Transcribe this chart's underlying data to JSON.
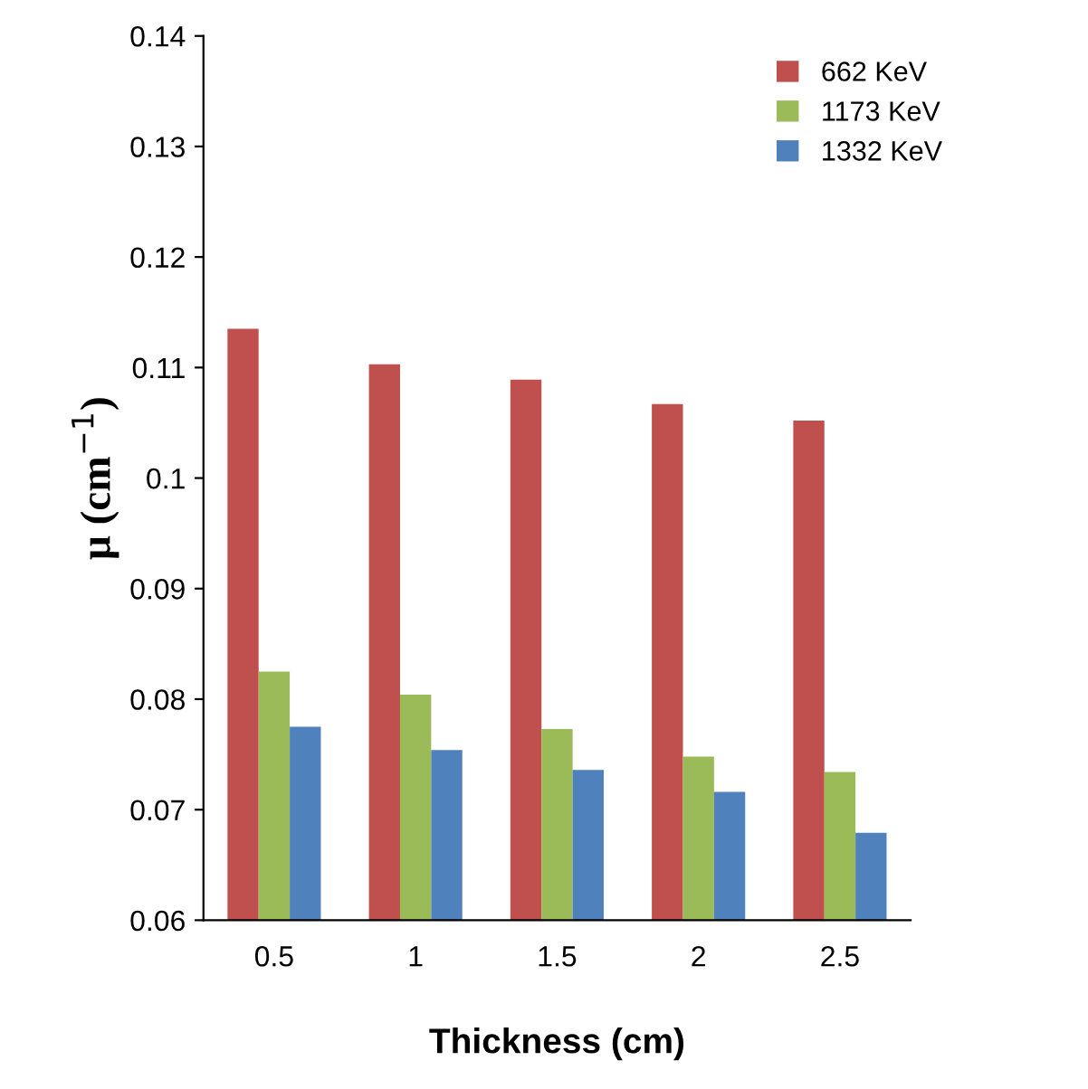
{
  "chart_data": {
    "type": "bar",
    "xlabel": "Thickness (cm)",
    "ylabel": "μ (cm$^{−1}$)",
    "categories": [
      "0.5",
      "1",
      "1.5",
      "2",
      "2.5"
    ],
    "series": [
      {
        "name": "662 KeV",
        "color": "#c0504d",
        "values": [
          0.1135,
          0.1103,
          0.1089,
          0.1067,
          0.1052
        ]
      },
      {
        "name": "1173 KeV",
        "color": "#9bbb59",
        "values": [
          0.0825,
          0.0804,
          0.0773,
          0.0748,
          0.0734
        ]
      },
      {
        "name": "1332 KeV",
        "color": "#4f81bd",
        "values": [
          0.0775,
          0.0754,
          0.0736,
          0.0716,
          0.0679
        ]
      }
    ],
    "ylim": [
      0.06,
      0.14
    ],
    "yticks": [
      0.06,
      0.07,
      0.08,
      0.09,
      {
        "value": 0.1,
        "label": "0.1"
      },
      0.11,
      0.12,
      0.13,
      0.14
    ],
    "grid": false,
    "legend": "top right"
  }
}
